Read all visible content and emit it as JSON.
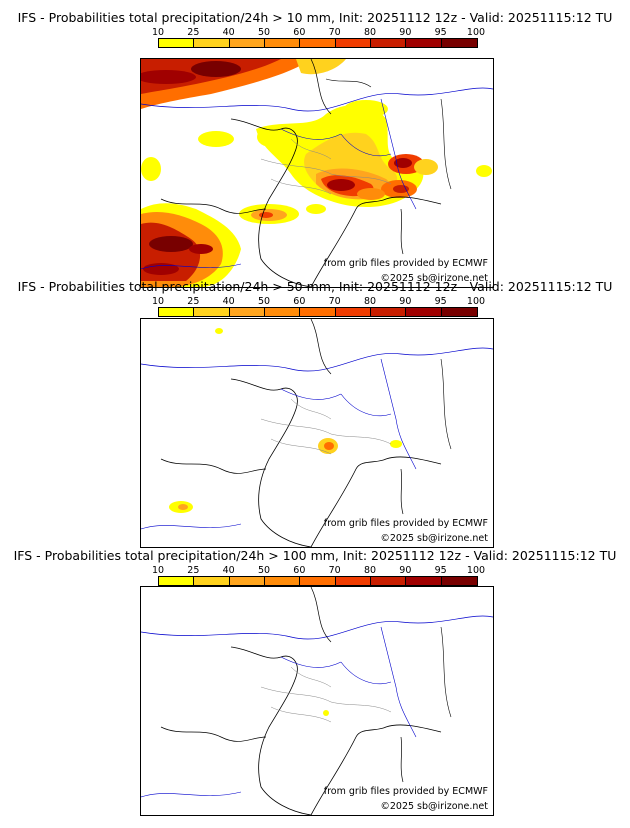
{
  "colorbar": {
    "ticks": [
      "10",
      "25",
      "40",
      "50",
      "60",
      "70",
      "80",
      "90",
      "95",
      "100"
    ],
    "colors": [
      "#ffff00",
      "#ffd21e",
      "#ffa51e",
      "#ff8c0a",
      "#ff6e00",
      "#f03c00",
      "#c81e00",
      "#a00000",
      "#780000"
    ]
  },
  "panels": [
    {
      "title": "IFS - Probabilities total precipitation/24h > 10 mm, Init: 20251112 12z - Valid: 20251115:12 TU",
      "credit_source": "from grib files provided by ECMWF",
      "credit_copyright": "©2025 sb@irizone.net",
      "threshold_mm": 10
    },
    {
      "title": "IFS - Probabilities total precipitation/24h > 50 mm, Init: 20251112 12z - Valid: 20251115:12 TU",
      "credit_source": "from grib files provided by ECMWF",
      "credit_copyright": "©2025 sb@irizone.net",
      "threshold_mm": 50
    },
    {
      "title": "IFS - Probabilities total precipitation/24h > 100 mm, Init: 20251112 12z - Valid: 20251115:12 TU",
      "credit_source": "from grib files provided by ECMWF",
      "credit_copyright": "©2025 sb@irizone.net",
      "threshold_mm": 100
    }
  ]
}
